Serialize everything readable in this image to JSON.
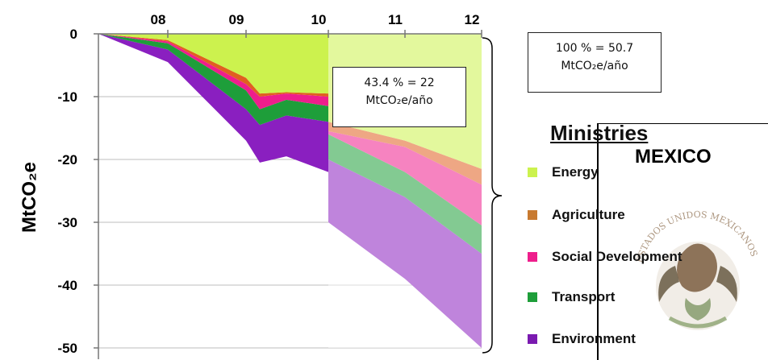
{
  "chart_data": {
    "type": "area",
    "x": [
      "07",
      "08",
      "09",
      "09.5",
      "09.8",
      "10",
      "10",
      "11",
      "12"
    ],
    "x_ticks": [
      "08",
      "09",
      "10",
      "11",
      "12"
    ],
    "y_ticks": [
      "0",
      "-10",
      "-20",
      "-30",
      "-40",
      "-50"
    ],
    "ylabel": "MtCO₂e",
    "ylim": [
      -50,
      0
    ],
    "series": [
      {
        "name": "Environment",
        "color": "#8a1fc0",
        "cumulative_bottom": [
          0,
          -4.5,
          -17,
          -20.5,
          -19.5,
          -22,
          -30,
          -39,
          -50
        ]
      },
      {
        "name": "Transport",
        "color": "#1e9e3a",
        "cumulative_bottom": [
          0,
          -2.5,
          -12,
          -14.5,
          -13,
          -14,
          -20,
          -26,
          -35
        ]
      },
      {
        "name": "Social Development",
        "color": "#ee1e8c",
        "cumulative_bottom": [
          0,
          -1.5,
          -9,
          -12,
          -10.5,
          -11.5,
          -16,
          -22,
          -30.5
        ]
      },
      {
        "name": "Agriculture",
        "color": "#e06020",
        "cumulative_bottom": [
          0,
          -1.2,
          -8,
          -10,
          -9.5,
          -10,
          -15.5,
          -18,
          -24
        ]
      },
      {
        "name": "Energy",
        "color": "#ccf24e",
        "cumulative_bottom": [
          0,
          -1,
          -7,
          -9.5,
          -9.3,
          -9.5,
          -14,
          -17,
          -21.5
        ]
      }
    ],
    "annotations": [
      {
        "line1": "43.4 % = 22",
        "line2": "MtCO₂e/año"
      },
      {
        "line1": "100 % = 50.7",
        "line2": "MtCO₂e/año"
      }
    ]
  },
  "legend": {
    "title": "Ministries",
    "items": [
      {
        "label": "Energy",
        "color": "#ccf24e"
      },
      {
        "label": "Agriculture",
        "color": "#c87a30"
      },
      {
        "label": "Social Development",
        "color": "#ee1e8c"
      },
      {
        "label": "Transport",
        "color": "#1e9e3a"
      },
      {
        "label": "Environment",
        "color": "#7a1ab0"
      }
    ]
  },
  "emblem": {
    "country_label": "MEXICO",
    "seal_text": "ESTADOS UNIDOS MEXICANOS"
  }
}
